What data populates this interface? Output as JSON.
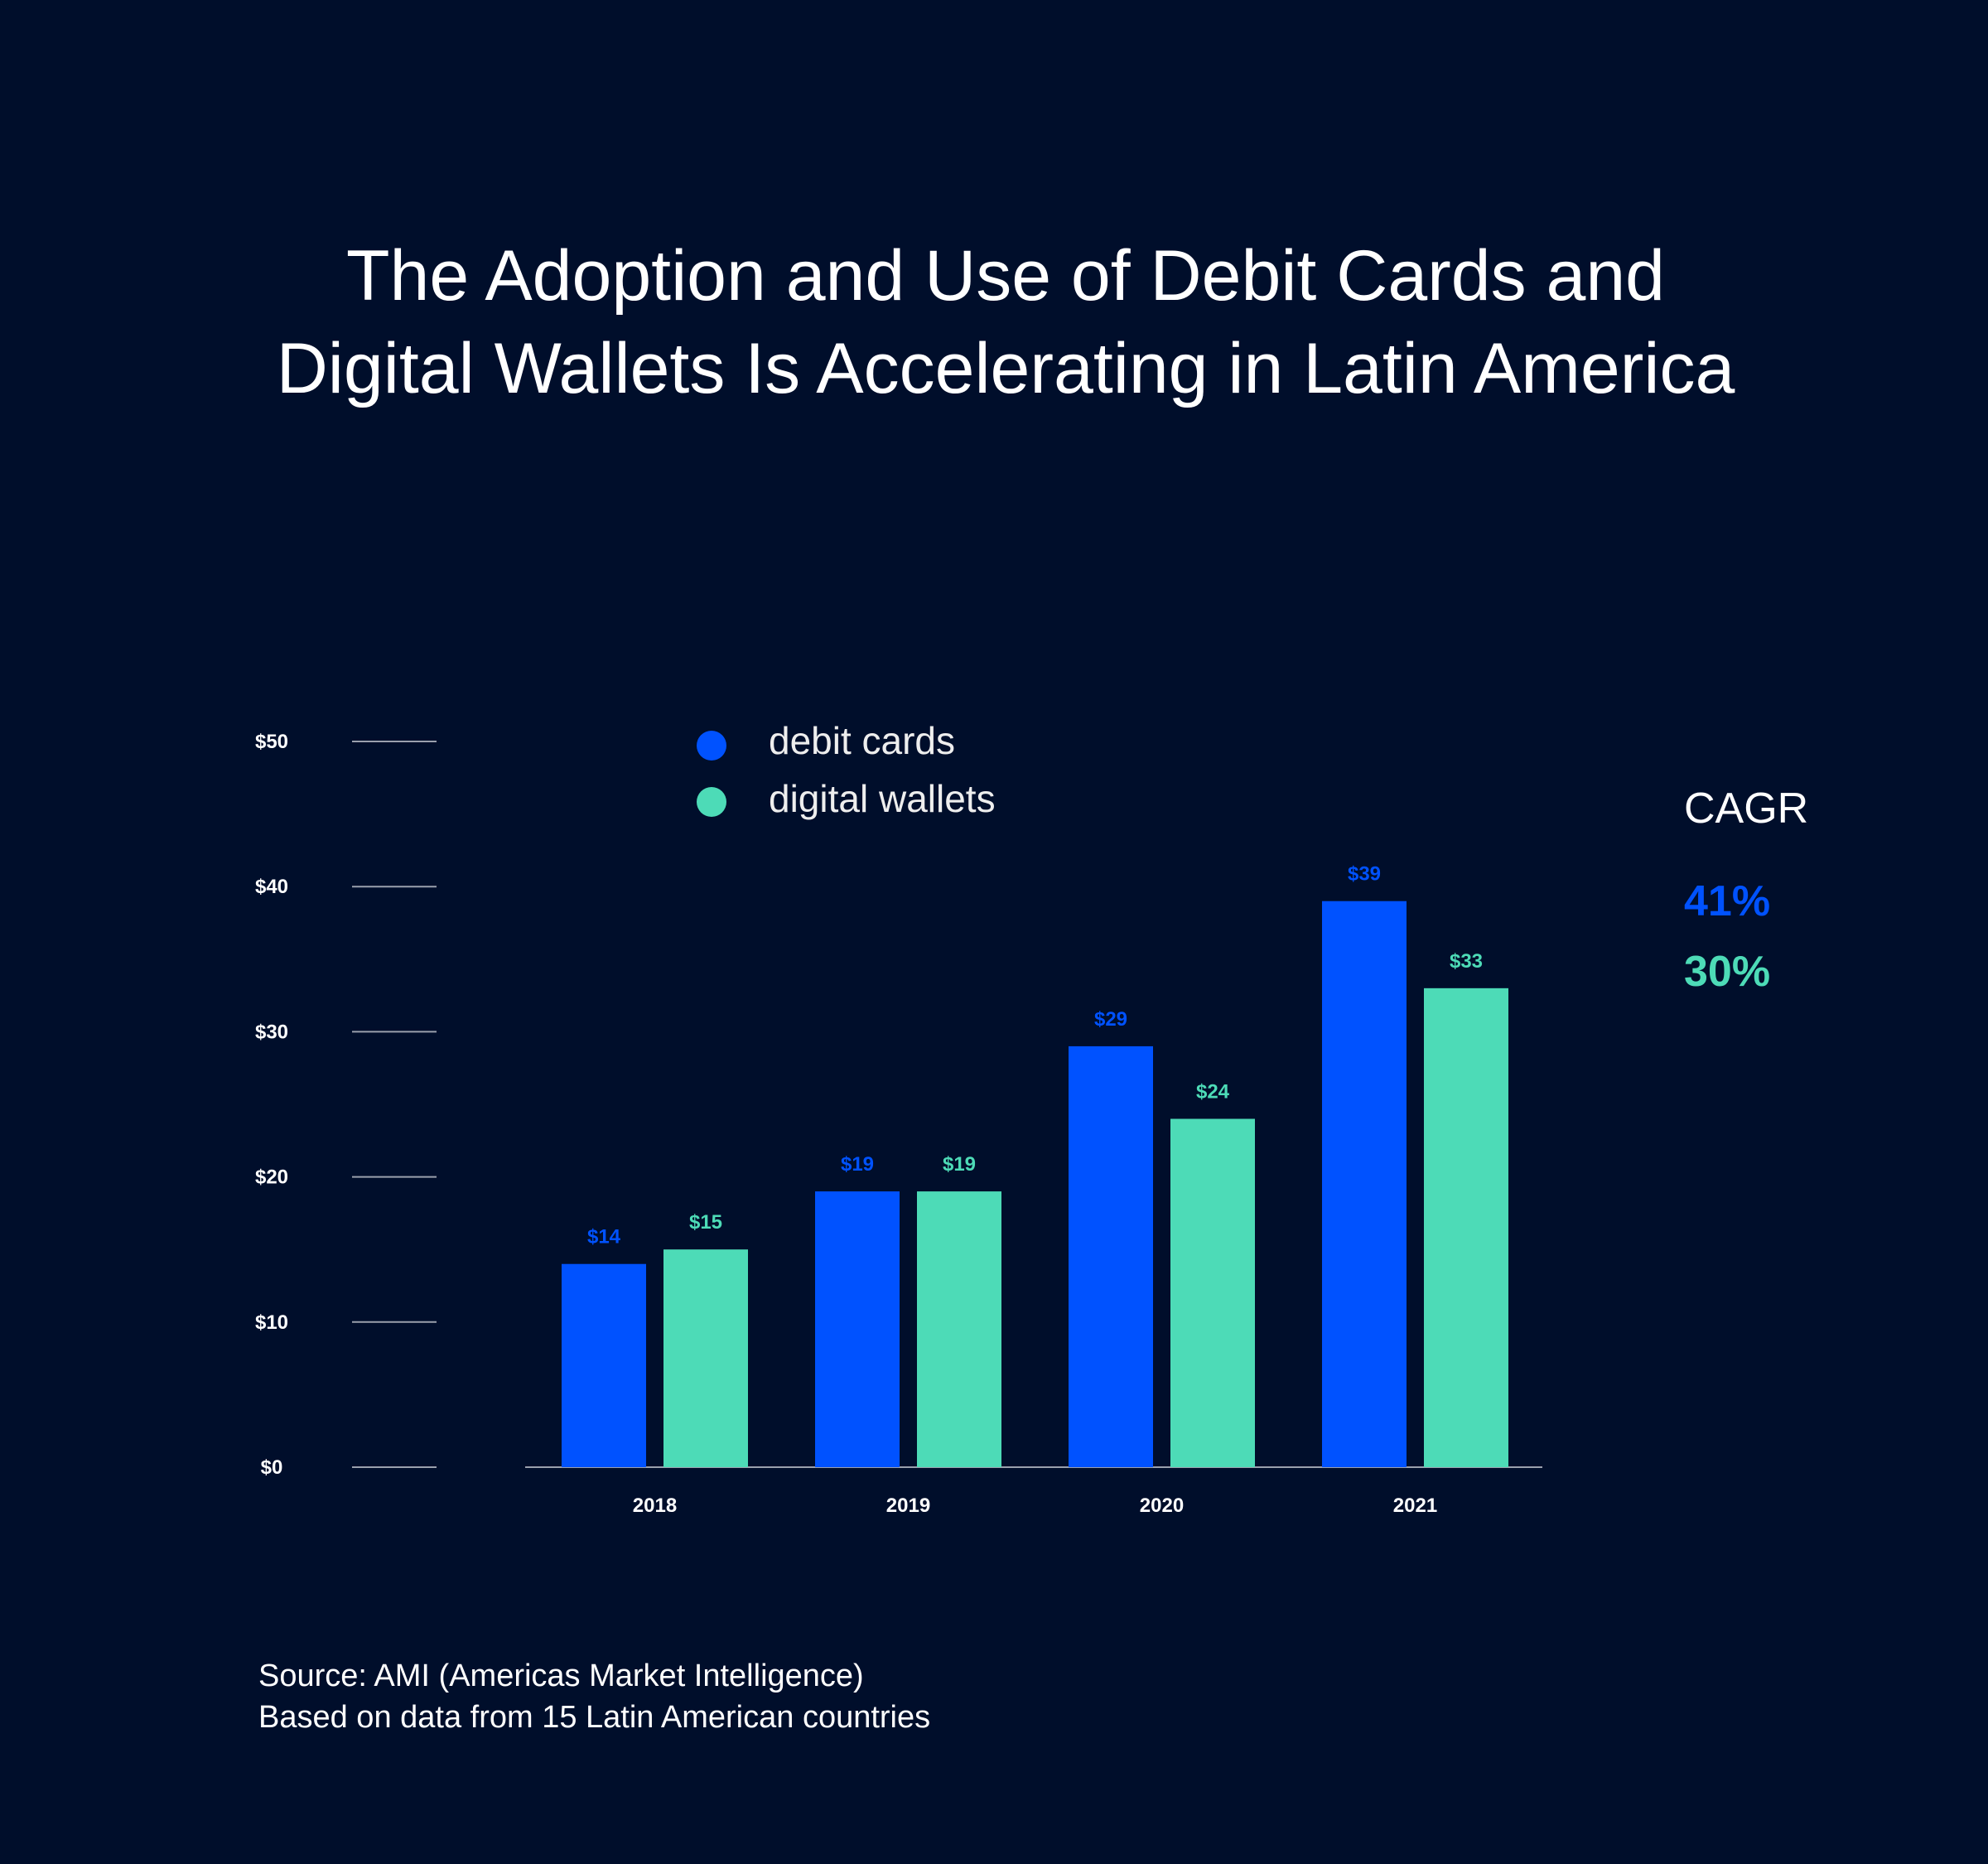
{
  "colors": {
    "background": "#000e2b",
    "debit": "#0052ff",
    "wallet": "#4ddbb7",
    "text": "#ffffff"
  },
  "chart_data": {
    "type": "bar",
    "title": [
      "The Adoption and Use of Debit Cards and",
      "Digital Wallets Is Accelerating in Latin America"
    ],
    "categories": [
      "2018",
      "2019",
      "2020",
      "2021"
    ],
    "series": [
      {
        "name": "debit cards",
        "values": [
          14,
          19,
          29,
          39
        ],
        "labels": [
          "$14",
          "$19",
          "$29",
          "$39"
        ]
      },
      {
        "name": "digital wallets",
        "values": [
          15,
          19,
          24,
          33
        ],
        "labels": [
          "$15",
          "$19",
          "$24",
          "$33"
        ]
      }
    ],
    "yticks": [
      "$0",
      "$10",
      "$20",
      "$30",
      "$40",
      "$50"
    ],
    "ylim": [
      0,
      50
    ],
    "xlabel": "",
    "ylabel": "",
    "legend": "top-center",
    "grid": false
  },
  "cagr": {
    "title": "CAGR",
    "debit": "41%",
    "wallet": "30%"
  },
  "source": [
    "Source: AMI (Americas Market Intelligence)",
    "Based on data from 15 Latin American countries"
  ]
}
